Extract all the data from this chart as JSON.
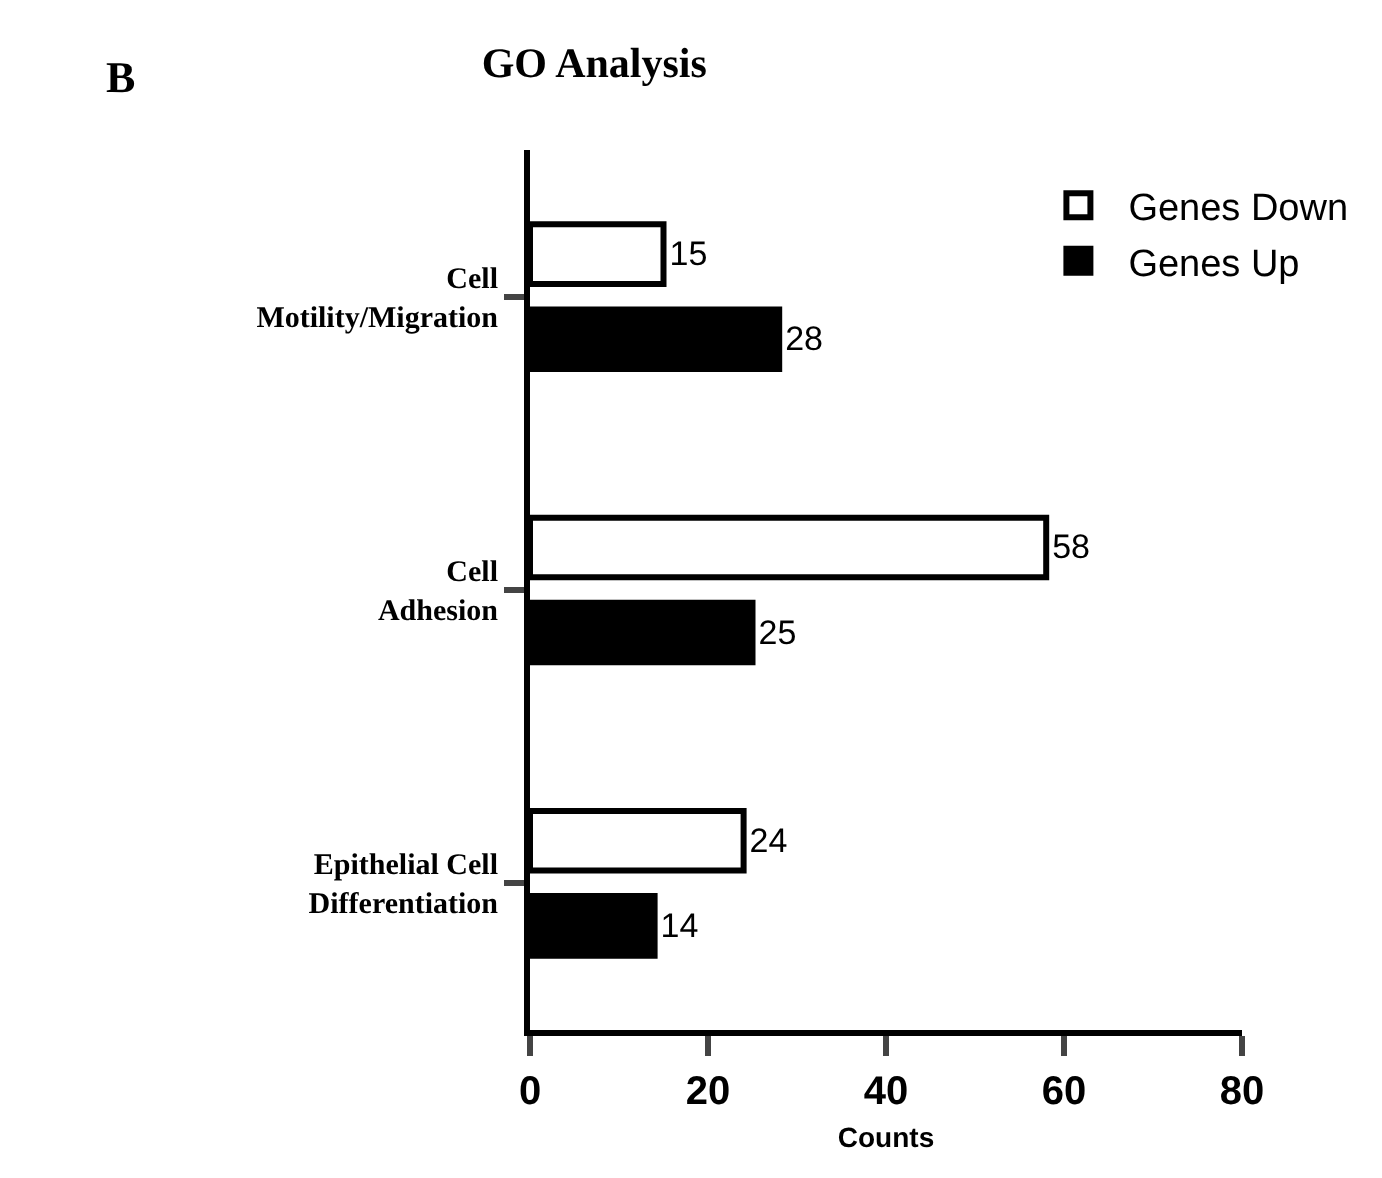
{
  "chart_data": {
    "type": "bar",
    "orientation": "horizontal",
    "title": "GO Analysis",
    "xlabel": "Counts",
    "categories": [
      "Cell\nMotility/Migration",
      "Cell\nAdhesion",
      "Epithelial Cell\nDifferentiation"
    ],
    "series": [
      {
        "name": "Genes Down",
        "color": "#ffffff",
        "values": [
          15,
          58,
          24
        ]
      },
      {
        "name": "Genes Up",
        "color": "#000000",
        "values": [
          28,
          25,
          14
        ]
      }
    ],
    "xlim": [
      0,
      80
    ],
    "xticks": [
      0,
      20,
      40,
      60,
      80
    ],
    "data_labels": true,
    "legend": "top right",
    "annotations": [
      "B"
    ]
  }
}
